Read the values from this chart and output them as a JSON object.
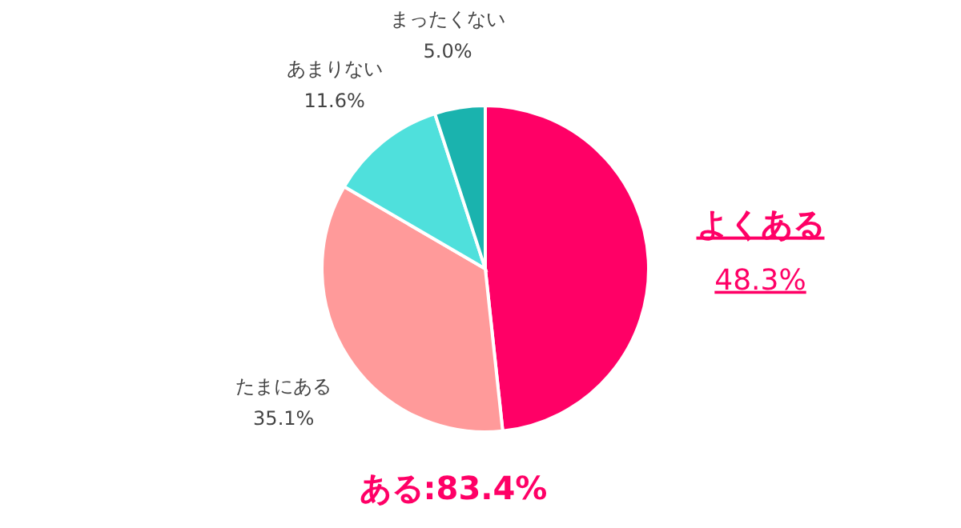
{
  "chart_data": {
    "type": "pie",
    "categories": [
      "よくある",
      "たまにある",
      "あまりない",
      "まったくない"
    ],
    "values": [
      48.3,
      35.1,
      11.6,
      5.0
    ],
    "value_labels": [
      "48.3%",
      "35.1%",
      "11.6%",
      "5.0%"
    ],
    "colors": [
      "#ff0066",
      "#ff9a9a",
      "#4fe0dc",
      "#1ab3ae"
    ],
    "annotations": [
      "ある:83.4%"
    ]
  }
}
